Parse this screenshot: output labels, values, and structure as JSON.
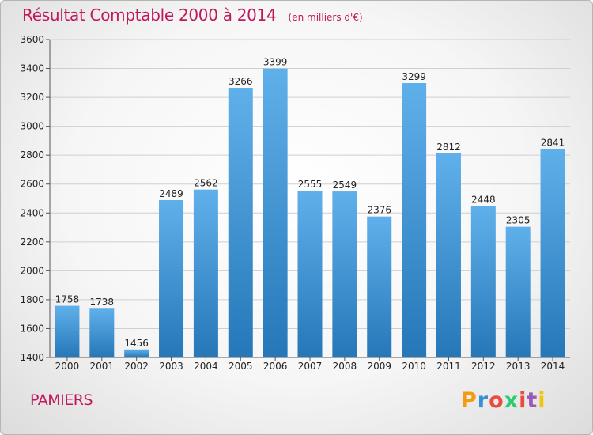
{
  "header": {
    "title": "Résultat Comptable 2000 à 2014",
    "subtitle": "(en milliers d'€)"
  },
  "footer": {
    "city": "PAMIERS",
    "logo_letters": [
      "P",
      "r",
      "o",
      "x",
      "i",
      "t",
      "i"
    ],
    "logo_colors": [
      "#f39c12",
      "#3a8ed8",
      "#e74c3c",
      "#2ecc71",
      "#e74c3c",
      "#9b59b6",
      "#f1c40f"
    ]
  },
  "colors": {
    "bar_top": "#5fb0ea",
    "bar_bottom": "#2677b8",
    "accent": "#c2185b",
    "axis": "#555555",
    "grid": "#cfcfcf"
  },
  "chart_data": {
    "type": "bar",
    "title": "Résultat Comptable 2000 à 2014",
    "xlabel": "",
    "ylabel": "",
    "categories": [
      "2000",
      "2001",
      "2002",
      "2003",
      "2004",
      "2005",
      "2006",
      "2007",
      "2008",
      "2009",
      "2010",
      "2011",
      "2012",
      "2013",
      "2014"
    ],
    "values": [
      1758,
      1738,
      1456,
      2489,
      2562,
      3266,
      3399,
      2555,
      2549,
      2376,
      3299,
      2812,
      2448,
      2305,
      2841
    ],
    "ylim": [
      1400,
      3600
    ],
    "yticks": [
      1400,
      1600,
      1800,
      2000,
      2200,
      2400,
      2600,
      2800,
      3000,
      3200,
      3400,
      3600
    ],
    "grid": true,
    "legend": "none"
  }
}
